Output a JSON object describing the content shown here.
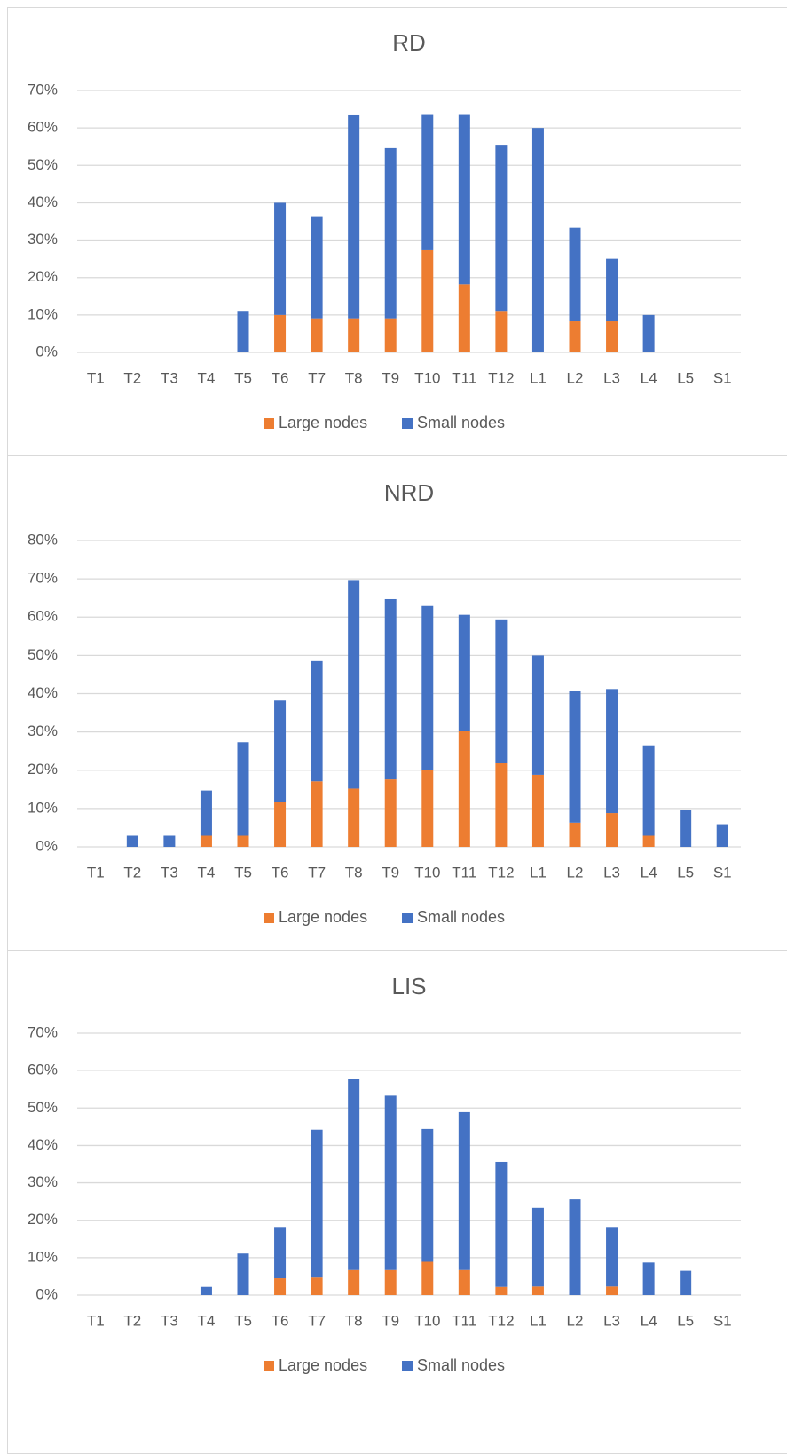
{
  "chart_data": [
    {
      "type": "bar",
      "stacked": true,
      "title": "RD",
      "categories": [
        "T1",
        "T2",
        "T3",
        "T4",
        "T5",
        "T6",
        "T7",
        "T8",
        "T9",
        "T10",
        "T11",
        "T12",
        "L1",
        "L2",
        "L3",
        "L4",
        "L5",
        "S1"
      ],
      "series": [
        {
          "name": "Large nodes",
          "color": "#ed7d31",
          "values": [
            0,
            0,
            0,
            0,
            0,
            10,
            9.1,
            9.1,
            9.1,
            27.3,
            18.2,
            11.1,
            0,
            8.3,
            8.3,
            0,
            0,
            0
          ]
        },
        {
          "name": "Small nodes",
          "color": "#4472c4",
          "values": [
            0,
            0,
            0,
            0,
            11.1,
            30,
            27.3,
            54.5,
            45.5,
            36.4,
            45.5,
            44.4,
            60,
            25,
            16.7,
            10,
            0,
            0
          ]
        }
      ],
      "ylim": [
        0,
        70
      ],
      "yticks": [
        {
          "value": 0,
          "label": "0%"
        },
        {
          "value": 10,
          "label": "10%"
        },
        {
          "value": 20,
          "label": "20%"
        },
        {
          "value": 30,
          "label": "30%"
        },
        {
          "value": 40,
          "label": "40%"
        },
        {
          "value": 50,
          "label": "50%"
        },
        {
          "value": 60,
          "label": "60%"
        },
        {
          "value": 70,
          "label": "70%"
        }
      ],
      "grid": true,
      "legend": "bottom"
    },
    {
      "type": "bar",
      "stacked": true,
      "title": "NRD",
      "categories": [
        "T1",
        "T2",
        "T3",
        "T4",
        "T5",
        "T6",
        "T7",
        "T8",
        "T9",
        "T10",
        "T11",
        "T12",
        "L1",
        "L2",
        "L3",
        "L4",
        "L5",
        "S1"
      ],
      "series": [
        {
          "name": "Large nodes",
          "color": "#ed7d31",
          "values": [
            0,
            0,
            0,
            2.9,
            2.9,
            11.8,
            17.1,
            15.2,
            17.6,
            20,
            30.3,
            21.9,
            18.8,
            6.3,
            8.8,
            2.9,
            0,
            0
          ]
        },
        {
          "name": "Small nodes",
          "color": "#4472c4",
          "values": [
            0,
            2.9,
            2.9,
            11.8,
            24.4,
            26.4,
            31.4,
            54.5,
            47.1,
            42.9,
            30.3,
            37.5,
            31.2,
            34.3,
            32.4,
            23.6,
            9.7,
            5.9
          ]
        }
      ],
      "ylim": [
        0,
        80
      ],
      "yticks": [
        {
          "value": 0,
          "label": "0%"
        },
        {
          "value": 10,
          "label": "10%"
        },
        {
          "value": 20,
          "label": "20%"
        },
        {
          "value": 30,
          "label": "30%"
        },
        {
          "value": 40,
          "label": "40%"
        },
        {
          "value": 50,
          "label": "50%"
        },
        {
          "value": 60,
          "label": "60%"
        },
        {
          "value": 70,
          "label": "70%"
        },
        {
          "value": 80,
          "label": "80%"
        }
      ],
      "grid": true,
      "legend": "bottom"
    },
    {
      "type": "bar",
      "stacked": true,
      "title": "LIS",
      "categories": [
        "T1",
        "T2",
        "T3",
        "T4",
        "T5",
        "T6",
        "T7",
        "T8",
        "T9",
        "T10",
        "T11",
        "T12",
        "L1",
        "L2",
        "L3",
        "L4",
        "L5",
        "S1"
      ],
      "series": [
        {
          "name": "Large nodes",
          "color": "#ed7d31",
          "values": [
            0,
            0,
            0,
            0,
            0,
            4.5,
            4.7,
            6.7,
            6.7,
            8.9,
            6.7,
            2.2,
            2.3,
            0,
            2.3,
            0,
            0,
            0
          ]
        },
        {
          "name": "Small nodes",
          "color": "#4472c4",
          "values": [
            0,
            0,
            0,
            2.2,
            11.1,
            13.7,
            39.5,
            51.1,
            46.6,
            35.5,
            42.2,
            33.4,
            21,
            25.6,
            15.9,
            8.7,
            6.5,
            0
          ]
        }
      ],
      "ylim": [
        0,
        70
      ],
      "yticks": [
        {
          "value": 0,
          "label": "0%"
        },
        {
          "value": 10,
          "label": "10%"
        },
        {
          "value": 20,
          "label": "20%"
        },
        {
          "value": 30,
          "label": "30%"
        },
        {
          "value": 40,
          "label": "40%"
        },
        {
          "value": 50,
          "label": "50%"
        },
        {
          "value": 60,
          "label": "60%"
        },
        {
          "value": 70,
          "label": "70%"
        }
      ],
      "grid": true,
      "legend": "bottom"
    }
  ]
}
